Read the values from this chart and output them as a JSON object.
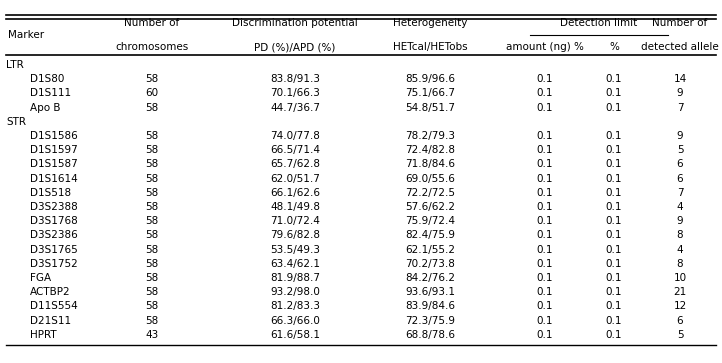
{
  "groups": [
    {
      "group_label": "LTR",
      "rows": [
        [
          "D1S80",
          "58",
          "83.8/91.3",
          "85.9/96.6",
          "0.1",
          "0.1",
          "14"
        ],
        [
          "D1S111",
          "60",
          "70.1/66.3",
          "75.1/66.7",
          "0.1",
          "0.1",
          "9"
        ],
        [
          "Apo B",
          "58",
          "44.7/36.7",
          "54.8/51.7",
          "0.1",
          "0.1",
          "7"
        ]
      ]
    },
    {
      "group_label": "STR",
      "rows": [
        [
          "D1S1586",
          "58",
          "74.0/77.8",
          "78.2/79.3",
          "0.1",
          "0.1",
          "9"
        ],
        [
          "D1S1597",
          "58",
          "66.5/71.4",
          "72.4/82.8",
          "0.1",
          "0.1",
          "5"
        ],
        [
          "D1S1587",
          "58",
          "65.7/62.8",
          "71.8/84.6",
          "0.1",
          "0.1",
          "6"
        ],
        [
          "D1S1614",
          "58",
          "62.0/51.7",
          "69.0/55.6",
          "0.1",
          "0.1",
          "6"
        ],
        [
          "D1S518",
          "58",
          "66.1/62.6",
          "72.2/72.5",
          "0.1",
          "0.1",
          "7"
        ],
        [
          "D3S2388",
          "58",
          "48.1/49.8",
          "57.6/62.2",
          "0.1",
          "0.1",
          "4"
        ],
        [
          "D3S1768",
          "58",
          "71.0/72.4",
          "75.9/72.4",
          "0.1",
          "0.1",
          "9"
        ],
        [
          "D3S2386",
          "58",
          "79.6/82.8",
          "82.4/75.9",
          "0.1",
          "0.1",
          "8"
        ],
        [
          "D3S1765",
          "58",
          "53.5/49.3",
          "62.1/55.2",
          "0.1",
          "0.1",
          "4"
        ],
        [
          "D3S1752",
          "58",
          "63.4/62.1",
          "70.2/73.8",
          "0.1",
          "0.1",
          "8"
        ],
        [
          "FGA",
          "58",
          "81.9/88.7",
          "84.2/76.2",
          "0.1",
          "0.1",
          "10"
        ],
        [
          "ACTBP2",
          "58",
          "93.2/98.0",
          "93.6/93.1",
          "0.1",
          "0.1",
          "21"
        ],
        [
          "D11S554",
          "58",
          "81.2/83.3",
          "83.9/84.6",
          "0.1",
          "0.1",
          "12"
        ],
        [
          "D21S11",
          "58",
          "66.3/66.0",
          "72.3/75.9",
          "0.1",
          "0.1",
          "6"
        ],
        [
          "HPRT",
          "43",
          "61.6/58.1",
          "68.8/78.6",
          "0.1",
          "0.1",
          "5"
        ]
      ]
    }
  ],
  "background_color": "#ffffff",
  "font_size": 7.5,
  "header_font_size": 7.5
}
